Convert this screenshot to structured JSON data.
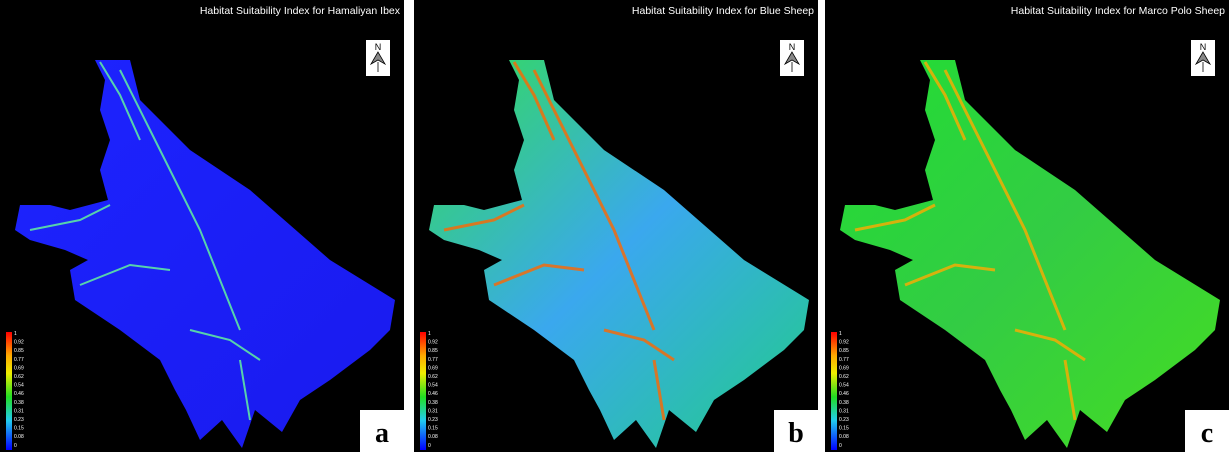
{
  "panels": [
    {
      "title": "Habitat Suitability Index for Hamaliyan Ibex",
      "label": "a"
    },
    {
      "title": "Habitat Suitability Index for Blue Sheep",
      "label": "b"
    },
    {
      "title": "Habitat Suitability Index for Marco Polo Sheep",
      "label": "c"
    }
  ],
  "legend": {
    "ticks": [
      "1",
      "0.92",
      "0.85",
      "0.77",
      "0.69",
      "0.62",
      "0.54",
      "0.46",
      "0.38",
      "0.31",
      "0.23",
      "0.15",
      "0.08",
      "0"
    ]
  },
  "north": "N"
}
